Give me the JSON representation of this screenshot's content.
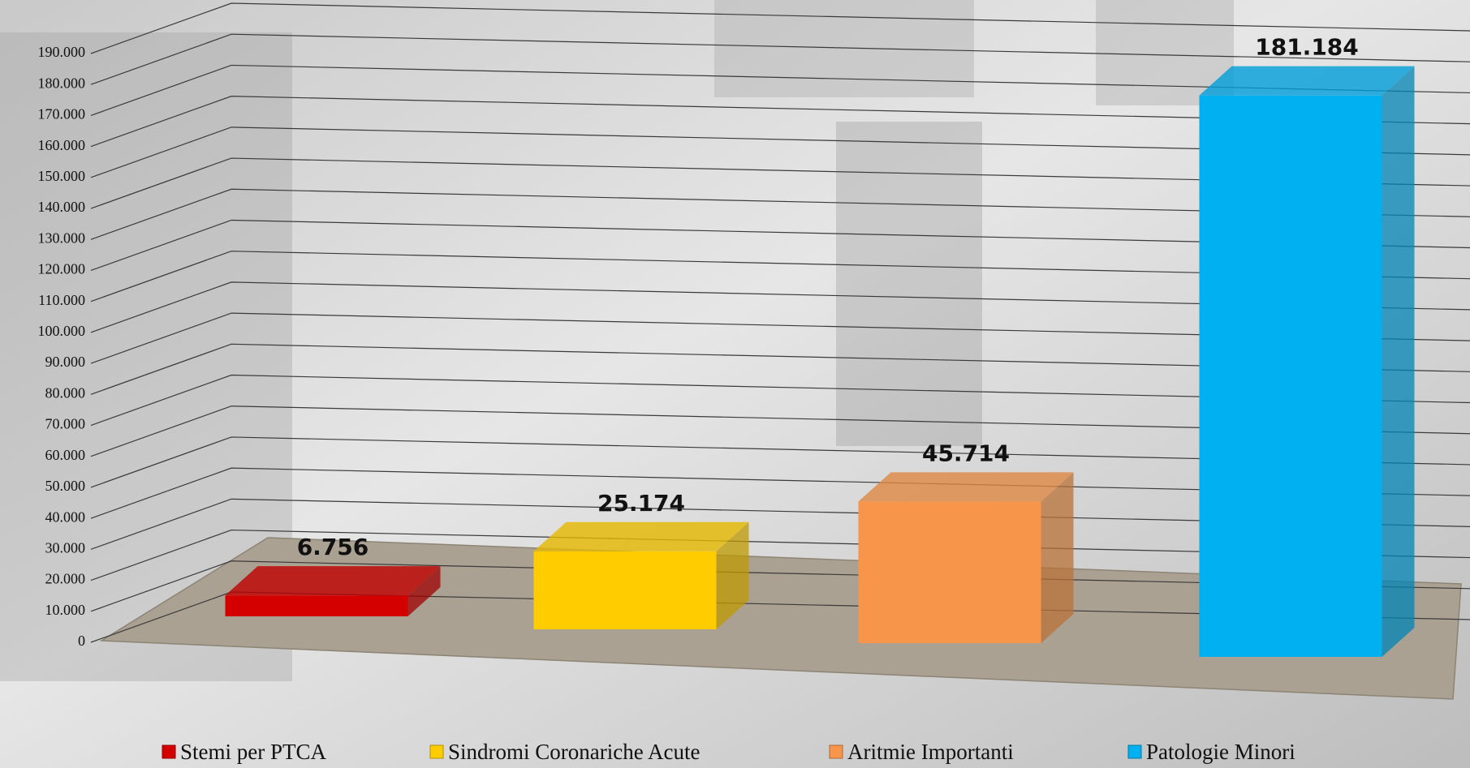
{
  "chart_data": {
    "type": "bar3d",
    "categories": [
      null
    ],
    "series": [
      {
        "name": "Stemi per PTCA",
        "color": "#d40000",
        "values": [
          6756
        ],
        "value_labels": [
          "6.756"
        ]
      },
      {
        "name": "Sindromi Coronariche Acute",
        "color": "#ffcc00",
        "values": [
          25174
        ],
        "value_labels": [
          "25.174"
        ]
      },
      {
        "name": "Aritmie Importanti",
        "color": "#f7964a",
        "values": [
          45714
        ],
        "value_labels": [
          "45.714"
        ]
      },
      {
        "name": "Patologie Minori",
        "color": "#00b0f0",
        "values": [
          181184
        ],
        "value_labels": [
          "181.184"
        ]
      }
    ],
    "ylim": [
      0,
      190000
    ],
    "yticks": [
      0,
      {
        "value": 10000,
        "label": "10.000"
      },
      {
        "value": 20000,
        "label": "20.000"
      },
      {
        "value": 30000,
        "label": "30.000"
      },
      {
        "value": 40000,
        "label": "40.000"
      },
      {
        "value": 50000,
        "label": "50.000"
      },
      {
        "value": 60000,
        "label": "60.000"
      },
      {
        "value": 70000,
        "label": "70.000"
      },
      {
        "value": 80000,
        "label": "80.000"
      },
      {
        "value": 90000,
        "label": "90.000"
      },
      {
        "value": 100000,
        "label": "100.000"
      },
      {
        "value": 110000,
        "label": "110.000"
      },
      {
        "value": 120000,
        "label": "120.000"
      },
      {
        "value": 130000,
        "label": "130.000"
      },
      {
        "value": 140000,
        "label": "140.000"
      },
      {
        "value": 150000,
        "label": "150.000"
      },
      {
        "value": 160000,
        "label": "160.000"
      },
      {
        "value": 170000,
        "label": "170.000"
      },
      {
        "value": 180000,
        "label": "180.000"
      },
      {
        "value": 190000,
        "label": "190.000"
      }
    ],
    "grid": true,
    "legend": "bottom"
  }
}
